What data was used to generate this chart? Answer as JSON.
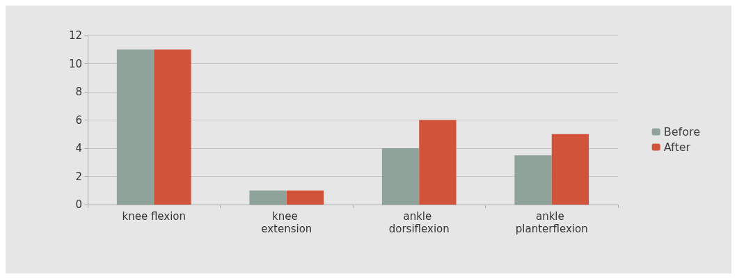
{
  "chart_data": {
    "type": "bar",
    "categories": [
      "knee flexion",
      "knee extension",
      "ankle dorsiflexion",
      "ankle planterflexion"
    ],
    "series": [
      {
        "name": "Before",
        "color": "#8fa39a",
        "values": [
          11,
          1,
          4,
          3.5
        ]
      },
      {
        "name": "After",
        "color": "#d0533a",
        "values": [
          11,
          1,
          6,
          5
        ]
      }
    ],
    "ylim": [
      0,
      12
    ],
    "yticks": [
      0,
      2,
      4,
      6,
      8,
      10,
      12
    ],
    "grid": "y",
    "legend": "right"
  }
}
